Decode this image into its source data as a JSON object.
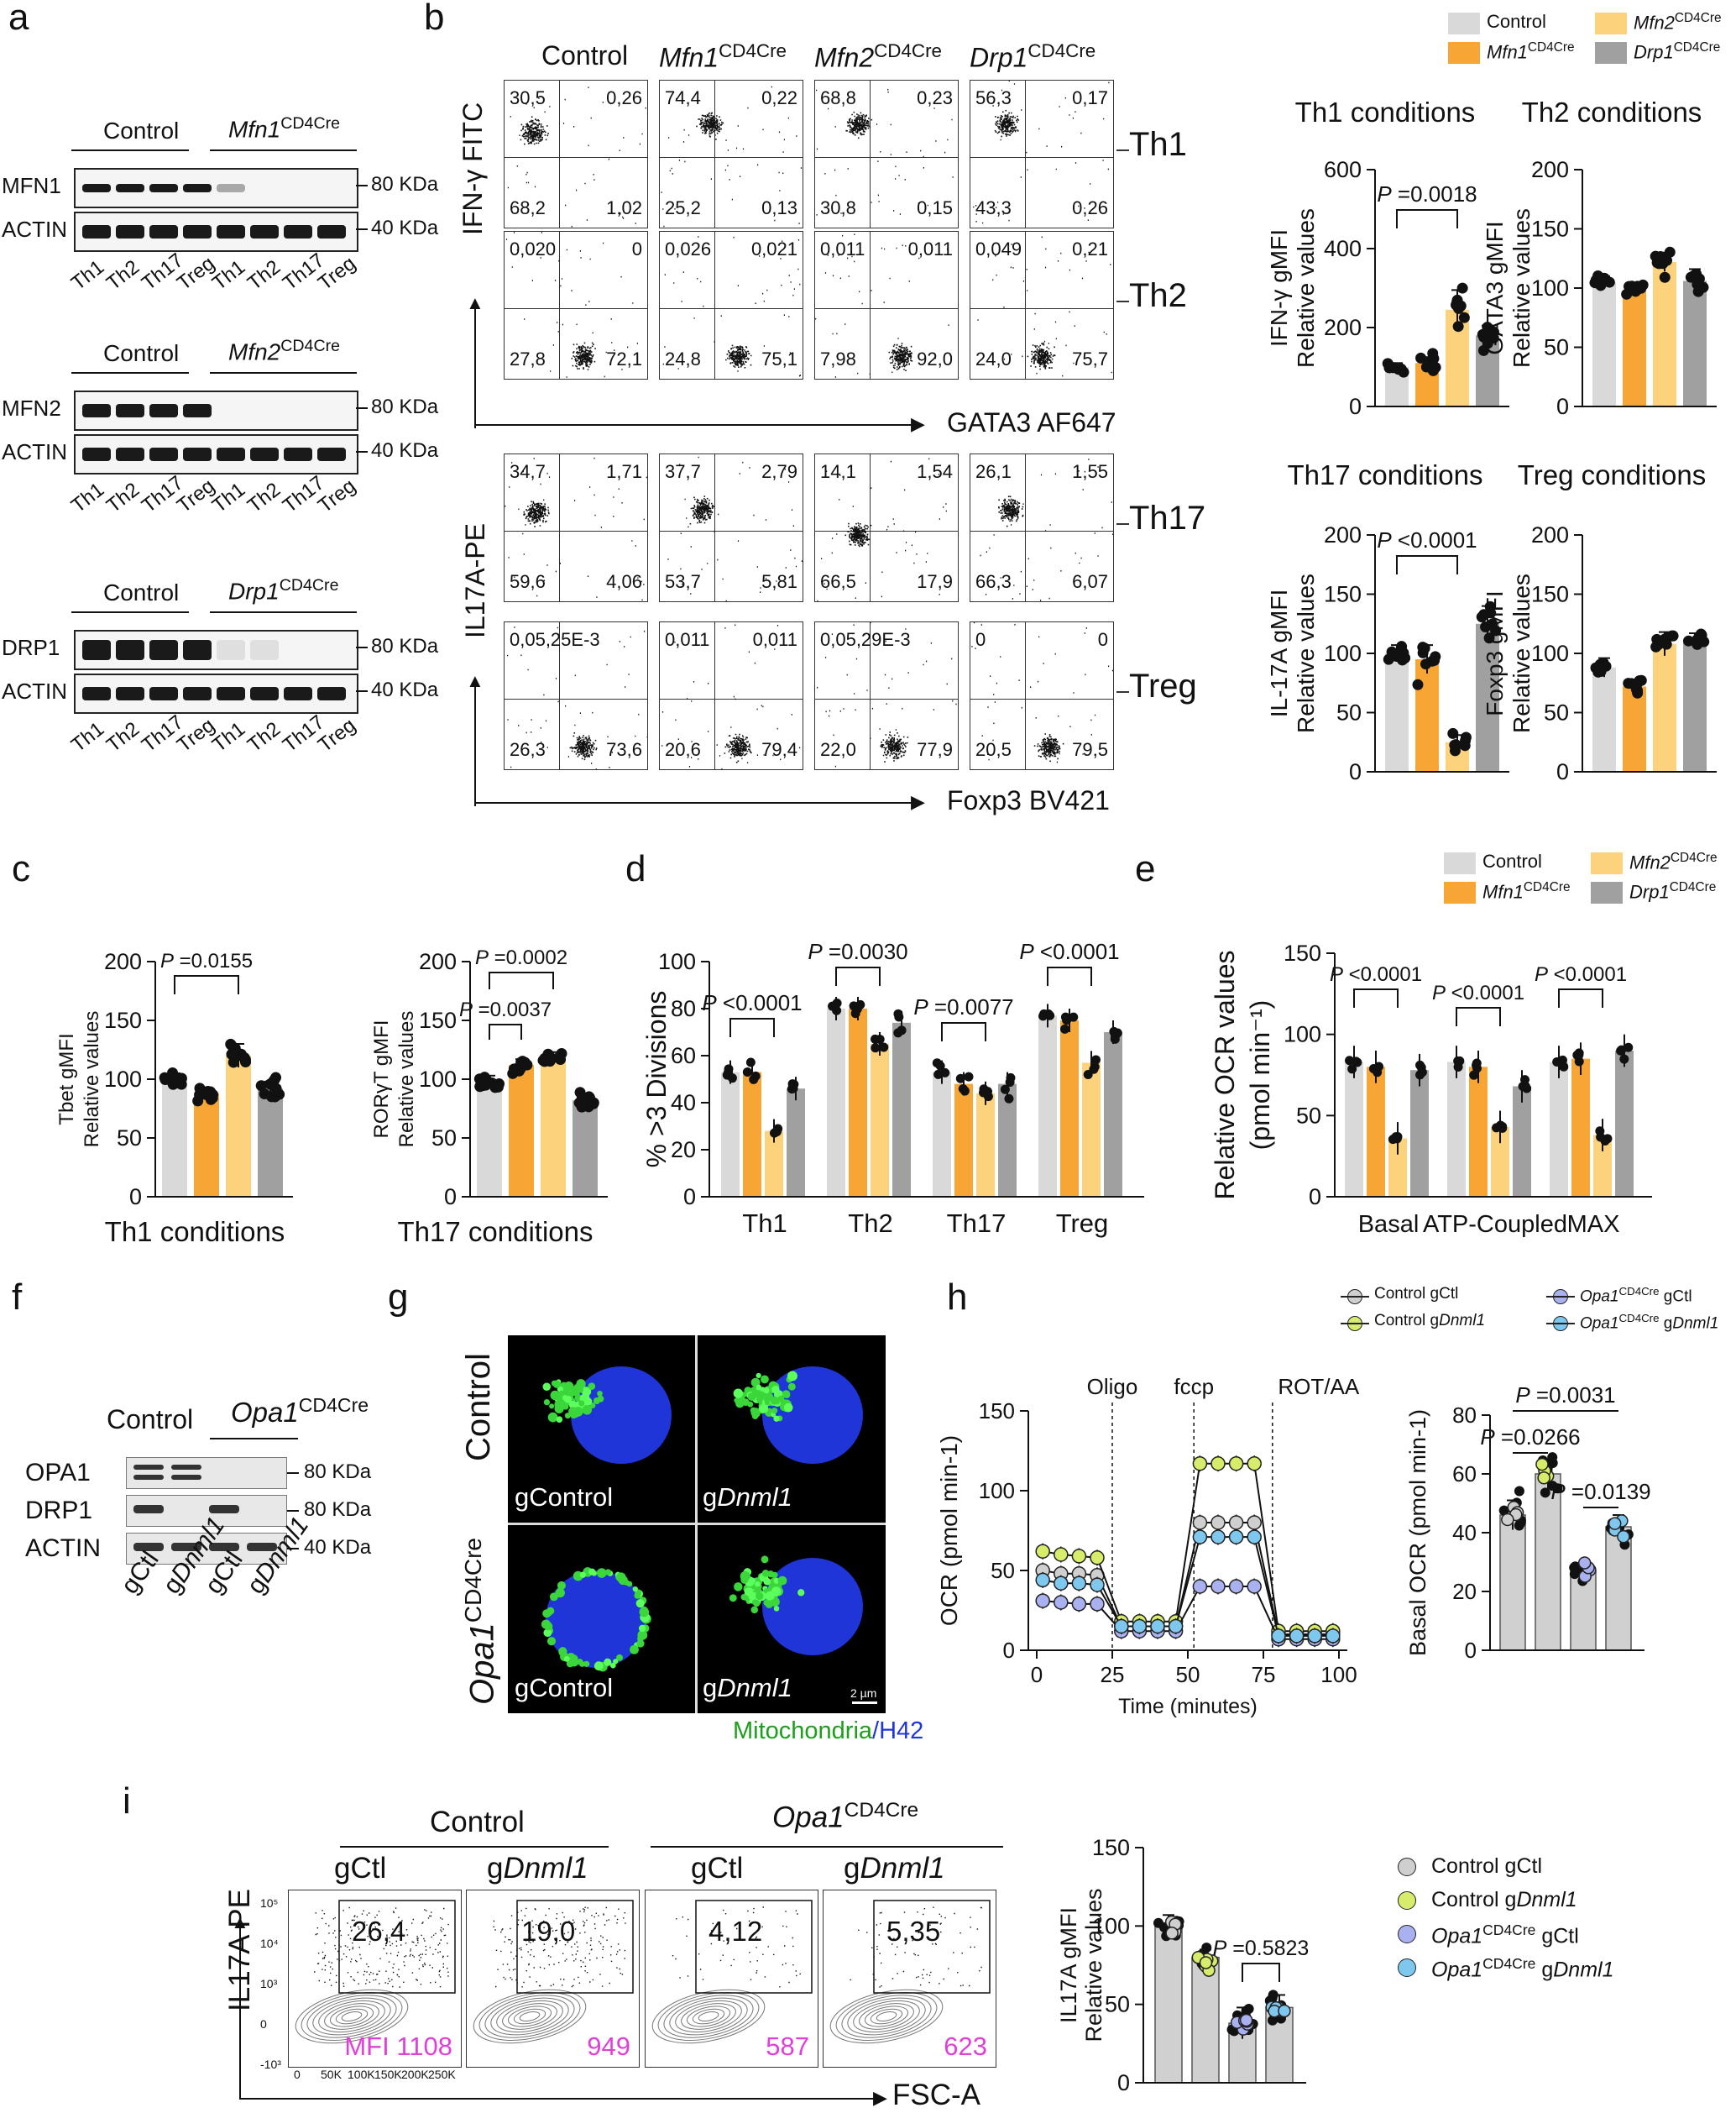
{
  "panels": {
    "a": "a",
    "b": "b",
    "c": "c",
    "d": "d",
    "e": "e",
    "f": "f",
    "g": "g",
    "h": "h",
    "i": "i"
  },
  "colors": {
    "control": "#d9d9d9",
    "mfn1": "#f7a535",
    "mfn2": "#fdd27c",
    "drp1": "#a0a0a0",
    "gctl_ctrl": "#cfcfcf",
    "gdnml1_ctrl": "#d7ec6a",
    "gctl_opa": "#a9b1f0",
    "gdnml1_opa": "#7ec7ee"
  },
  "legend_b": {
    "control": "Control",
    "mfn1": "Mfn1",
    "mfn2": "Mfn2",
    "drp1": "Drp1",
    "sup": "CD4Cre"
  },
  "a": {
    "blots": [
      {
        "ctrl": "Control",
        "ko": "Mfn1",
        "sup": "CD4Cre",
        "row1": "MFN1",
        "row2": "ACTIN",
        "kda1": "80 KDa",
        "kda2": "40 KDa"
      },
      {
        "ctrl": "Control",
        "ko": "Mfn2",
        "sup": "CD4Cre",
        "row1": "MFN2",
        "row2": "ACTIN",
        "kda1": "80 KDa",
        "kda2": "40 KDa"
      },
      {
        "ctrl": "Control",
        "ko": "Drp1",
        "sup": "CD4Cre",
        "row1": "DRP1",
        "row2": "ACTIN",
        "kda1": "80 KDa",
        "kda2": "40 KDa"
      }
    ],
    "lanes": [
      "Th1",
      "Th2",
      "Th17",
      "Treg",
      "Th1",
      "Th2",
      "Th17",
      "Treg"
    ]
  },
  "b": {
    "cols": [
      "Control",
      "Mfn1",
      "Mfn2",
      "Drp1"
    ],
    "sup": "CD4Cre",
    "rows": [
      "Th1",
      "Th2",
      "Th17",
      "Treg"
    ],
    "ylab_top": "IFN-γ FITC",
    "xlab_top": "GATA3 AF647",
    "ylab_bot": "IL17A-PE",
    "xlab_bot": "Foxp3 BV421",
    "quads": [
      [
        [
          "30,5",
          "0,26",
          "68,2",
          "1,02"
        ],
        [
          "74,4",
          "0,22",
          "25,2",
          "0,13"
        ],
        [
          "68,8",
          "0,23",
          "30,8",
          "0,15"
        ],
        [
          "56,3",
          "0,17",
          "43,3",
          "0,26"
        ]
      ],
      [
        [
          "0,020",
          "0",
          "27,8",
          "72,1"
        ],
        [
          "0,026",
          "0,021",
          "24,8",
          "75,1"
        ],
        [
          "0,011",
          "0,011",
          "7,98",
          "92,0"
        ],
        [
          "0,049",
          "0,21",
          "24,0",
          "75,7"
        ]
      ],
      [
        [
          "34,7",
          "1,71",
          "59,6",
          "4,06"
        ],
        [
          "37,7",
          "2,79",
          "53,7",
          "5,81"
        ],
        [
          "14,1",
          "1,54",
          "66,5",
          "17,9"
        ],
        [
          "26,1",
          "1,55",
          "66,3",
          "6,07"
        ]
      ],
      [
        [
          "0,05,25E-3",
          "",
          "26,3",
          "73,6"
        ],
        [
          "0,011",
          "0,011",
          "20,6",
          "79,4"
        ],
        [
          "0,05,29E-3",
          "",
          "22,0",
          "77,9"
        ],
        [
          "0",
          "0",
          "20,5",
          "79,5"
        ]
      ]
    ]
  },
  "chart_data": [
    {
      "type": "bar",
      "panel": "b",
      "title": "Th1 conditions",
      "ylabel": "IFN-γ gMFI Relative values",
      "ylim": [
        0,
        600
      ],
      "yticks": [
        0,
        200,
        400,
        600
      ],
      "values": [
        100,
        110,
        245,
        180
      ],
      "errors": [
        10,
        15,
        50,
        25
      ],
      "pval": "P =0.0018",
      "pair": [
        0,
        2
      ]
    },
    {
      "type": "bar",
      "panel": "b",
      "title": "Th2 conditions",
      "ylabel": "GATA3 gMFI Relative values",
      "ylim": [
        0,
        200
      ],
      "yticks": [
        0,
        50,
        100,
        150,
        200
      ],
      "values": [
        105,
        98,
        122,
        106
      ],
      "errors": [
        5,
        5,
        8,
        10
      ]
    },
    {
      "type": "bar",
      "panel": "b",
      "title": "Th17 conditions",
      "ylabel": "IL-17A gMFI Relative values",
      "ylim": [
        0,
        200
      ],
      "yticks": [
        0,
        50,
        100,
        150,
        200
      ],
      "values": [
        100,
        95,
        25,
        125
      ],
      "errors": [
        7,
        12,
        6,
        15
      ],
      "pval": "P <0.0001",
      "pair": [
        0,
        2
      ]
    },
    {
      "type": "bar",
      "panel": "b",
      "title": "Treg conditions",
      "ylabel": "Foxp3 gMFI Relative values",
      "ylim": [
        0,
        200
      ],
      "yticks": [
        0,
        50,
        100,
        150,
        200
      ],
      "values": [
        88,
        72,
        108,
        112
      ],
      "errors": [
        8,
        6,
        10,
        5
      ]
    },
    {
      "type": "bar",
      "panel": "c",
      "title": "Th1 conditions",
      "ylabel": "Tbet gMFI Relative values",
      "ylim": [
        0,
        200
      ],
      "yticks": [
        0,
        50,
        100,
        150,
        200
      ],
      "values": [
        100,
        88,
        120,
        92
      ],
      "errors": [
        5,
        5,
        10,
        6
      ],
      "pval": "P =0.0155",
      "pair": [
        0,
        2
      ]
    },
    {
      "type": "bar",
      "panel": "c",
      "title": "Th17 conditions",
      "ylabel": "RORγT gMFI Relative values",
      "ylim": [
        0,
        200
      ],
      "yticks": [
        0,
        50,
        100,
        150,
        200
      ],
      "values": [
        98,
        112,
        118,
        82
      ],
      "errors": [
        5,
        5,
        5,
        4
      ],
      "pval": [
        "P =0.0002",
        "P =0.0037"
      ]
    },
    {
      "type": "bar",
      "panel": "d",
      "ylabel": "% >3 Divisions",
      "ylim": [
        0,
        100
      ],
      "yticks": [
        0,
        20,
        40,
        60,
        80,
        100
      ],
      "categories": [
        "Th1",
        "Th2",
        "Th17",
        "Treg"
      ],
      "series": [
        {
          "name": "Control",
          "values": [
            53,
            80,
            53,
            77
          ]
        },
        {
          "name": "Mfn1",
          "values": [
            53,
            80,
            48,
            75
          ]
        },
        {
          "name": "Mfn2",
          "values": [
            28,
            65,
            44,
            57
          ]
        },
        {
          "name": "Drp1",
          "values": [
            46,
            74,
            48,
            70
          ]
        }
      ],
      "pvals": [
        "P <0.0001",
        "P =0.0030",
        "P =0.0077",
        "P <0.0001"
      ]
    },
    {
      "type": "bar",
      "panel": "e",
      "ylabel": "Relative OCR values (pmol min-1)",
      "ylim": [
        0,
        150
      ],
      "yticks": [
        0,
        50,
        100,
        150
      ],
      "categories": [
        "Basal",
        "ATP-Coupled",
        "MAX"
      ],
      "series": [
        {
          "name": "Control",
          "values": [
            83,
            83,
            83
          ]
        },
        {
          "name": "Mfn1",
          "values": [
            80,
            80,
            85
          ]
        },
        {
          "name": "Mfn2",
          "values": [
            36,
            43,
            38
          ]
        },
        {
          "name": "Drp1",
          "values": [
            78,
            68,
            90
          ]
        }
      ],
      "pvals": [
        "P <0.0001",
        "P <0.0001",
        "P <0.0001"
      ]
    },
    {
      "type": "line",
      "panel": "h",
      "xlabel": "Time (minutes)",
      "ylabel": "OCR (pmol min-1)",
      "xlim": [
        0,
        100
      ],
      "ylim": [
        0,
        150
      ],
      "xticks": [
        0,
        25,
        50,
        75,
        100
      ],
      "yticks": [
        0,
        50,
        100,
        150
      ],
      "x": [
        2,
        8,
        14,
        20,
        28,
        34,
        40,
        46,
        54,
        60,
        66,
        72,
        80,
        86,
        92,
        98
      ],
      "series": [
        {
          "name": "Control gCtl",
          "values": [
            50,
            48,
            48,
            47,
            15,
            15,
            15,
            15,
            80,
            80,
            80,
            80,
            10,
            10,
            10,
            10
          ]
        },
        {
          "name": "Control gDnml1",
          "values": [
            62,
            60,
            59,
            58,
            18,
            18,
            18,
            18,
            117,
            117,
            117,
            117,
            12,
            12,
            12,
            12
          ]
        },
        {
          "name": "Opa1 gCtl",
          "values": [
            31,
            30,
            29,
            29,
            12,
            12,
            12,
            12,
            40,
            40,
            40,
            40,
            7,
            7,
            7,
            7
          ]
        },
        {
          "name": "Opa1 gDnml1",
          "values": [
            44,
            42,
            42,
            41,
            15,
            15,
            15,
            15,
            71,
            71,
            71,
            71,
            9,
            9,
            9,
            9
          ]
        }
      ],
      "events": [
        "Oligo",
        "fccp",
        "ROT/AA"
      ]
    },
    {
      "type": "bar",
      "panel": "h",
      "ylabel": "Basal OCR (pmol min-1)",
      "ylim": [
        0,
        80
      ],
      "yticks": [
        0,
        20,
        40,
        60,
        80
      ],
      "values": [
        46,
        60,
        27,
        42
      ],
      "errors": [
        5,
        5,
        2,
        4
      ],
      "pvals": [
        "P =0.0031",
        "P =0.0266",
        "P =0.0139"
      ]
    },
    {
      "type": "bar",
      "panel": "i",
      "ylabel": "IL17A gMFI Relative values",
      "ylim": [
        0,
        150
      ],
      "yticks": [
        0,
        50,
        100,
        150
      ],
      "values": [
        100,
        80,
        38,
        48
      ],
      "errors": [
        7,
        5,
        10,
        8
      ],
      "pval": "P =0.5823"
    }
  ],
  "c_xlabels": [
    "Th1 conditions",
    "Th17 conditions"
  ],
  "legend_e": {
    "control": "Control",
    "mfn1": "Mfn1",
    "mfn2": "Mfn2",
    "drp1": "Drp1",
    "sup": "CD4Cre"
  },
  "f": {
    "ctrl": "Control",
    "ko": "Opa1",
    "sup": "CD4Cre",
    "rows": [
      "OPA1",
      "DRP1",
      "ACTIN"
    ],
    "kda": [
      "80 KDa",
      "80 KDa",
      "40 KDa"
    ],
    "lanes": [
      "gCtl",
      "gDnml1",
      "gCtl",
      "gDnml1"
    ]
  },
  "g": {
    "row1": "Control",
    "row2": "Opa1",
    "sup": "CD4Cre",
    "c1": "gControl",
    "c2": "gDnml1",
    "scale": "2 µm",
    "caption1": "Mitochondria",
    "caption2": "/H42"
  },
  "h_legend": [
    "Control gCtl",
    "Control gDnml1",
    "Opa1 gCtl",
    "Opa1 gDnml1"
  ],
  "i": {
    "ctrl": "Control",
    "ko": "Opa1",
    "sup": "CD4Cre",
    "cols": [
      "gCtl",
      "gDnml1",
      "gCtl",
      "gDnml1"
    ],
    "pcts": [
      "26,4",
      "19,0",
      "4,12",
      "5,35"
    ],
    "mfis": [
      "MFI 1108",
      "949",
      "587",
      "623"
    ],
    "ylab": "IL17A PE",
    "xlab": "FSC-A",
    "xticks": [
      "0",
      "50K",
      "100K",
      "150K",
      "200K",
      "250K"
    ],
    "yticks": [
      "10⁵",
      "10⁴",
      "10³",
      "0",
      "-10³"
    ],
    "legend": [
      "Control gCtl",
      "Control gDnml1",
      "Opa1 gCtl",
      "Opa1 gDnml1"
    ]
  }
}
